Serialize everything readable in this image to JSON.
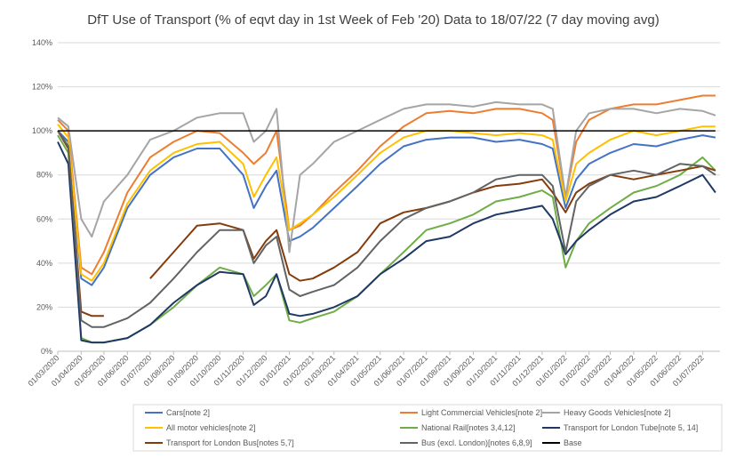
{
  "chart_data": {
    "type": "line",
    "title": "DfT Use of Transport (% of eqvt day in 1st Week of Feb '20) Data to 18/07/22 (7 day moving avg)",
    "x": [
      "01/03/2020",
      "15/03/2020",
      "01/04/2020",
      "15/04/2020",
      "01/05/2020",
      "01/06/2020",
      "01/07/2020",
      "01/08/2020",
      "01/09/2020",
      "01/10/2020",
      "01/11/2020",
      "15/11/2020",
      "01/12/2020",
      "15/12/2020",
      "01/01/2021",
      "15/01/2021",
      "01/02/2021",
      "01/03/2021",
      "01/04/2021",
      "01/05/2021",
      "01/06/2021",
      "01/07/2021",
      "01/08/2021",
      "01/09/2021",
      "01/10/2021",
      "01/11/2021",
      "01/12/2021",
      "15/12/2021",
      "01/01/2022",
      "15/01/2022",
      "01/02/2022",
      "01/03/2022",
      "01/04/2022",
      "01/05/2022",
      "01/06/2022",
      "01/07/2022",
      "18/07/2022"
    ],
    "xlim": [
      "01/03/2020",
      "24/07/2022"
    ],
    "xticks": [
      "01/03/2020",
      "01/04/2020",
      "01/05/2020",
      "01/06/2020",
      "01/07/2020",
      "01/08/2020",
      "01/09/2020",
      "01/10/2020",
      "01/11/2020",
      "01/12/2020",
      "01/01/2021",
      "01/02/2021",
      "01/03/2021",
      "01/04/2021",
      "01/05/2021",
      "01/06/2021",
      "01/07/2021",
      "01/08/2021",
      "01/09/2021",
      "01/10/2021",
      "01/11/2021",
      "01/12/2021",
      "01/01/2022",
      "01/02/2022",
      "01/03/2022",
      "01/04/2022",
      "01/05/2022",
      "01/06/2022",
      "01/07/2022"
    ],
    "ylim": [
      0,
      140
    ],
    "yticks": [
      {
        "value": 0,
        "label": "0%"
      },
      {
        "value": 20,
        "label": "20%"
      },
      {
        "value": 40,
        "label": "40%"
      },
      {
        "value": 60,
        "label": "60%"
      },
      {
        "value": 80,
        "label": "80%"
      },
      {
        "value": 100,
        "label": "100%"
      },
      {
        "value": 120,
        "label": "120%"
      },
      {
        "value": 140,
        "label": "140%"
      }
    ],
    "grid": true,
    "legend": "bottom",
    "series": [
      {
        "name": "Cars[note 2]",
        "color": "#4472c4",
        "values": [
          100,
          95,
          33,
          30,
          38,
          65,
          80,
          88,
          92,
          92,
          80,
          65,
          75,
          82,
          50,
          52,
          56,
          65,
          75,
          85,
          93,
          96,
          97,
          97,
          95,
          96,
          94,
          92,
          65,
          78,
          85,
          90,
          94,
          93,
          96,
          98,
          97
        ]
      },
      {
        "name": "Light Commercial Vehicles[note 2]",
        "color": "#ed7d31",
        "values": [
          105,
          100,
          38,
          35,
          45,
          72,
          88,
          95,
          100,
          99,
          90,
          85,
          90,
          100,
          55,
          57,
          62,
          72,
          82,
          93,
          102,
          108,
          109,
          108,
          110,
          110,
          108,
          105,
          70,
          95,
          105,
          110,
          112,
          112,
          114,
          116,
          116
        ]
      },
      {
        "name": "Heavy Goods Vehicles[note 2]",
        "color": "#a5a5a5",
        "values": [
          106,
          102,
          60,
          52,
          68,
          80,
          96,
          100,
          106,
          108,
          108,
          95,
          100,
          110,
          45,
          80,
          85,
          95,
          100,
          105,
          110,
          112,
          112,
          111,
          113,
          112,
          112,
          110,
          70,
          100,
          108,
          110,
          110,
          108,
          110,
          109,
          107
        ]
      },
      {
        "name": "All motor vehicles[note 2]",
        "color": "#ffc000",
        "values": [
          103,
          97,
          35,
          32,
          40,
          67,
          82,
          90,
          94,
          95,
          85,
          70,
          80,
          88,
          55,
          58,
          62,
          70,
          80,
          90,
          97,
          100,
          100,
          99,
          98,
          99,
          98,
          96,
          68,
          85,
          90,
          96,
          100,
          98,
          100,
          102,
          102
        ]
      },
      {
        "name": "National Rail[notes 3,4,12]",
        "color": "#70ad47",
        "values": [
          98,
          90,
          6,
          4,
          4,
          6,
          12,
          20,
          30,
          38,
          35,
          25,
          30,
          35,
          14,
          13,
          15,
          18,
          25,
          35,
          45,
          55,
          58,
          62,
          68,
          70,
          73,
          70,
          38,
          50,
          58,
          65,
          72,
          75,
          80,
          88,
          82
        ]
      },
      {
        "name": "Transport for London Tube[note 5, 14]",
        "color": "#1f3864",
        "values": [
          95,
          85,
          5,
          4,
          4,
          6,
          12,
          22,
          30,
          36,
          35,
          21,
          25,
          35,
          17,
          16,
          17,
          20,
          25,
          35,
          42,
          50,
          52,
          58,
          62,
          64,
          66,
          60,
          44,
          50,
          55,
          62,
          68,
          70,
          75,
          80,
          72
        ]
      },
      {
        "name": "Transport for London Bus[notes 5,7]",
        "color": "#843c0c",
        "values": [
          100,
          92,
          18,
          16,
          16,
          null,
          33,
          45,
          57,
          58,
          55,
          42,
          50,
          55,
          35,
          32,
          33,
          38,
          45,
          58,
          63,
          65,
          68,
          72,
          75,
          76,
          78,
          72,
          63,
          72,
          76,
          80,
          78,
          80,
          82,
          84,
          82
        ]
      },
      {
        "name": "Bus (excl. London)[notes 6,8,9]",
        "color": "#636363",
        "values": [
          100,
          93,
          14,
          11,
          11,
          15,
          22,
          33,
          45,
          55,
          55,
          40,
          48,
          52,
          28,
          25,
          27,
          30,
          38,
          50,
          60,
          65,
          68,
          72,
          78,
          80,
          80,
          75,
          45,
          68,
          75,
          80,
          82,
          80,
          85,
          84,
          80
        ]
      },
      {
        "name": "Base",
        "color": "#000000",
        "values": [
          100,
          100,
          100,
          100,
          100,
          100,
          100,
          100,
          100,
          100,
          100,
          100,
          100,
          100,
          100,
          100,
          100,
          100,
          100,
          100,
          100,
          100,
          100,
          100,
          100,
          100,
          100,
          100,
          100,
          100,
          100,
          100,
          100,
          100,
          100,
          100,
          100
        ]
      }
    ]
  }
}
